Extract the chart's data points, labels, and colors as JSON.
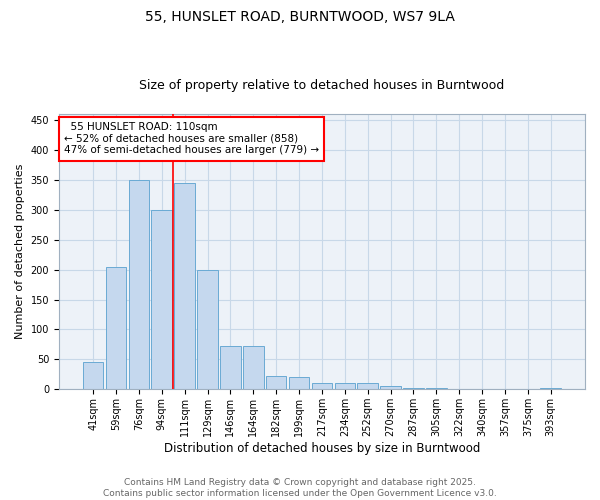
{
  "title1": "55, HUNSLET ROAD, BURNTWOOD, WS7 9LA",
  "title2": "Size of property relative to detached houses in Burntwood",
  "xlabel": "Distribution of detached houses by size in Burntwood",
  "ylabel": "Number of detached properties",
  "categories": [
    "41sqm",
    "59sqm",
    "76sqm",
    "94sqm",
    "111sqm",
    "129sqm",
    "146sqm",
    "164sqm",
    "182sqm",
    "199sqm",
    "217sqm",
    "234sqm",
    "252sqm",
    "270sqm",
    "287sqm",
    "305sqm",
    "322sqm",
    "340sqm",
    "357sqm",
    "375sqm",
    "393sqm"
  ],
  "values": [
    45,
    205,
    350,
    300,
    345,
    200,
    73,
    73,
    22,
    20,
    10,
    10,
    10,
    5,
    2,
    2,
    1,
    0,
    0,
    0,
    3
  ],
  "bar_color": "#c5d8ee",
  "bar_edge_color": "#6aaad4",
  "red_line_index": 4,
  "annotation_text": "  55 HUNSLET ROAD: 110sqm\n← 52% of detached houses are smaller (858)\n47% of semi-detached houses are larger (779) →",
  "annotation_box_color": "white",
  "annotation_box_edge_color": "red",
  "ylim": [
    0,
    460
  ],
  "yticks": [
    0,
    50,
    100,
    150,
    200,
    250,
    300,
    350,
    400,
    450
  ],
  "grid_color": "#c8d8e8",
  "background_color": "#edf2f8",
  "footer_text": "Contains HM Land Registry data © Crown copyright and database right 2025.\nContains public sector information licensed under the Open Government Licence v3.0.",
  "title1_fontsize": 10,
  "title2_fontsize": 9,
  "xlabel_fontsize": 8.5,
  "ylabel_fontsize": 8,
  "tick_fontsize": 7,
  "annotation_fontsize": 7.5,
  "footer_fontsize": 6.5
}
